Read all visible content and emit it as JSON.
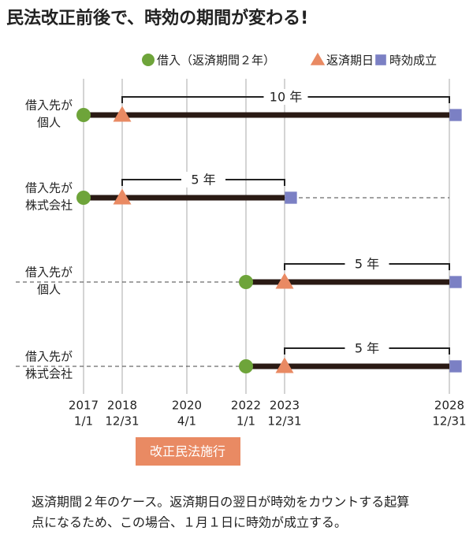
{
  "title": "民法改正前後で、時効の期間が変わる!",
  "legend": [
    {
      "label": "借入（返済期間２年）",
      "shape": "circle",
      "color": "#6ea43a"
    },
    {
      "label": "返済期日",
      "shape": "triangle",
      "color": "#e98a63"
    },
    {
      "label": "時効成立",
      "shape": "square",
      "color": "#7b80c4"
    }
  ],
  "axis": {
    "ticks": [
      {
        "year": "2017",
        "date": "1/1"
      },
      {
        "year": "2018",
        "date": "12/31"
      },
      {
        "year": "2020",
        "date": "4/1"
      },
      {
        "year": "2022",
        "date": "1/1"
      },
      {
        "year": "2023",
        "date": "12/31"
      },
      {
        "year": "2028",
        "date": "12/31"
      }
    ],
    "marker": "改正民法施行"
  },
  "rows": [
    {
      "label": [
        "借入先が",
        "個人"
      ],
      "loan": "2017 1/1",
      "due": "2018 12/31",
      "expiry": "2028 12/31",
      "span": "10 年"
    },
    {
      "label": [
        "借入先が",
        "株式会社"
      ],
      "loan": "2017 1/1",
      "due": "2018 12/31",
      "expiry": "2023 12/31",
      "span": "5 年"
    },
    {
      "label": [
        "借入先が",
        "個人"
      ],
      "loan": "2022 1/1",
      "due": "2023 12/31",
      "expiry": "2028 12/31",
      "span": "5 年"
    },
    {
      "label": [
        "借入先が",
        "株式会社"
      ],
      "loan": "2022 1/1",
      "due": "2023 12/31",
      "expiry": "2028 12/31",
      "span": "5 年"
    }
  ],
  "caption": [
    "返済期間２年のケース。返済期日の翌日が時効をカウントする起算",
    "点になるため、この場合、１月１日に時効が成立する。"
  ]
}
